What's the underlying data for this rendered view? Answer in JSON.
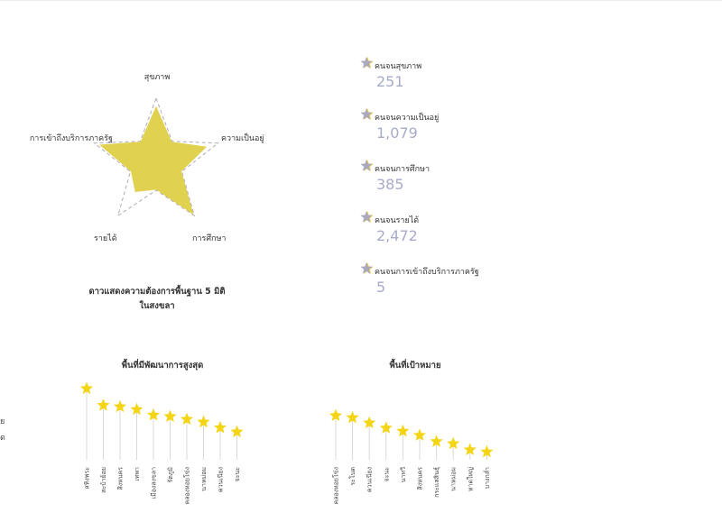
{
  "radar": {
    "axes": [
      "สุขภาพ",
      "ความเป็นอยู่",
      "การศึกษา",
      "รายได้",
      "การเข้าถึงบริการภาครัฐ"
    ],
    "caption_line1": "ดาวแสดงความต้องการพื้นฐาน 5 มิติ",
    "caption_line2": "ในสงขลา",
    "fill_color": "#e0d24f",
    "outline_color": "#b0aab5",
    "values": [
      0.88,
      0.82,
      0.98,
      0.55,
      0.92
    ]
  },
  "stats": [
    {
      "label": "คนจนสุขภาพ",
      "value": "251",
      "icon": "star-icon"
    },
    {
      "label": "คนจนความเป็นอยู่",
      "value": "1,079",
      "icon": "star-icon"
    },
    {
      "label": "คนจนการศึกษา",
      "value": "385",
      "icon": "star-icon"
    },
    {
      "label": "คนจนรายได้",
      "value": "2,472",
      "icon": "star-icon"
    },
    {
      "label": "คนจนการเข้าถึงบริการภาครัฐ",
      "value": "5",
      "icon": "star-icon"
    }
  ],
  "left_fragments": [
    "ย",
    "ด"
  ],
  "colors": {
    "star_yellow": "#f4d515",
    "stat_star_purple": "#a3a6cc",
    "stat_star_yellow": "#f1cb2f",
    "stem": "#d9d9d9",
    "stat_value": "#a7abc8"
  },
  "chart_data": [
    {
      "type": "lollipop",
      "title": "พื้นที่มีพัฒนาการสูงสุด",
      "categories": [
        "สทิงพระ",
        "สะบ้าย้อย",
        "สิงหนคร",
        "เทพา",
        "เมืองสงขลา",
        "รัตภูมิ",
        "คลองหอยโข่ง",
        "นาหม่อม",
        "ควนเนียง",
        "จะนะ"
      ],
      "values": [
        100,
        88,
        87,
        85,
        81,
        80,
        78,
        76,
        72,
        69
      ]
    },
    {
      "type": "lollipop",
      "title": "พื้นที่เป้าหมาย",
      "categories": [
        "คลองหอยโข่ง",
        "ระโนด",
        "ควนเนียง",
        "จะนะ",
        "นาทวี",
        "สิงหนคร",
        "กระแสสินธุ์",
        "นาหม่อม",
        "หาดใหญ่",
        "บางกล่ำ"
      ],
      "values": [
        100,
        98,
        93,
        88,
        85,
        81,
        75,
        73,
        67,
        65
      ]
    }
  ]
}
